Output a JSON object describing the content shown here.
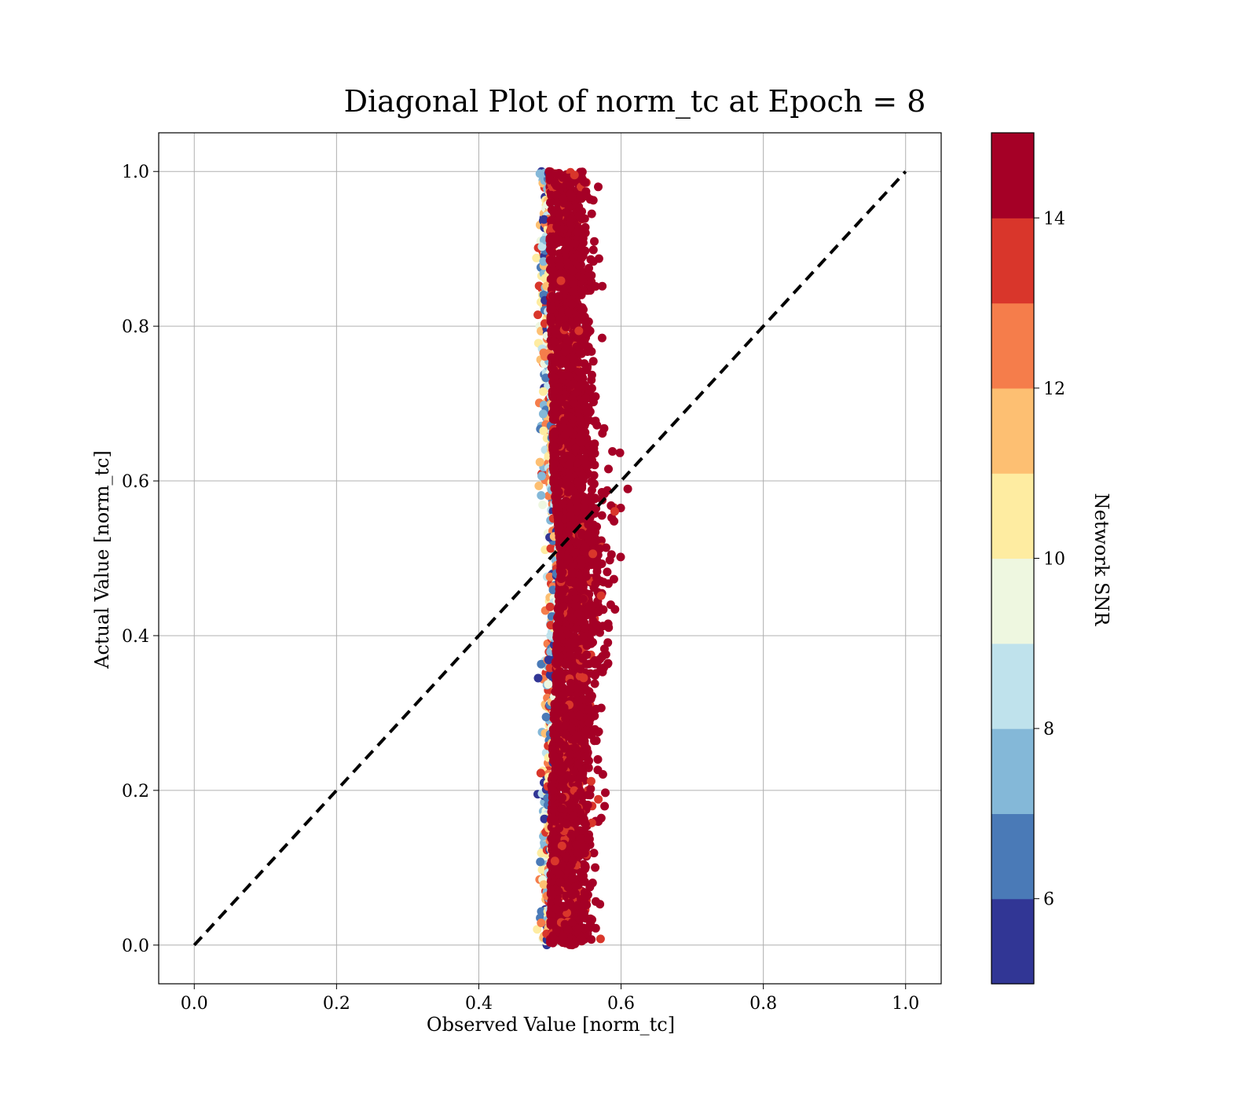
{
  "chart_data": {
    "type": "scatter",
    "title": "Diagonal Plot of norm_tc at Epoch = 8",
    "xlabel": "Observed Value [norm_tc]",
    "ylabel": "Actual Value [norm_tc]",
    "xlim": [
      -0.05,
      1.05
    ],
    "ylim": [
      -0.05,
      1.05
    ],
    "xticks": [
      "0.0",
      "0.2",
      "0.4",
      "0.6",
      "0.8",
      "1.0"
    ],
    "yticks": [
      "0.0",
      "0.2",
      "0.4",
      "0.6",
      "0.8",
      "1.0"
    ],
    "grid": true,
    "reference_line": {
      "style": "dashed",
      "color": "#000000",
      "from": [
        0,
        0
      ],
      "to": [
        1,
        1
      ]
    },
    "colorbar": {
      "label": "Network SNR",
      "range": [
        5,
        15
      ],
      "ticks": [
        "6",
        "8",
        "10",
        "12",
        "14"
      ],
      "colors": [
        "#313695",
        "#4575b4",
        "#74add1",
        "#abd9e9",
        "#e0f3f8",
        "#ffffbf",
        "#fee090",
        "#fdae61",
        "#f46d43",
        "#d73027",
        "#a50026"
      ],
      "bins": [
        {
          "from": 5,
          "to": 6,
          "color": "#313695"
        },
        {
          "from": 6,
          "to": 7,
          "color": "#4a7ab7"
        },
        {
          "from": 7,
          "to": 8,
          "color": "#84b8d8"
        },
        {
          "from": 8,
          "to": 9,
          "color": "#bfe2ec"
        },
        {
          "from": 9,
          "to": 10,
          "color": "#eef7e0"
        },
        {
          "from": 10,
          "to": 11,
          "color": "#feeca1"
        },
        {
          "from": 11,
          "to": 12,
          "color": "#fdbf72"
        },
        {
          "from": 12,
          "to": 13,
          "color": "#f57d4b"
        },
        {
          "from": 13,
          "to": 14,
          "color": "#d9362b"
        },
        {
          "from": 14,
          "to": 15,
          "color": "#a50026"
        }
      ]
    },
    "scatter_cloud": {
      "x_center": 0.525,
      "x_spread": 0.022,
      "y_range": [
        0.0,
        1.0
      ],
      "dominant_snr": 15,
      "x_center_profile": [
        {
          "y": 0.0,
          "x": 0.523
        },
        {
          "y": 0.2,
          "x": 0.525
        },
        {
          "y": 0.4,
          "x": 0.532
        },
        {
          "y": 0.5,
          "x": 0.538
        },
        {
          "y": 0.6,
          "x": 0.528
        },
        {
          "y": 0.8,
          "x": 0.524
        },
        {
          "y": 1.0,
          "x": 0.522
        }
      ]
    }
  }
}
